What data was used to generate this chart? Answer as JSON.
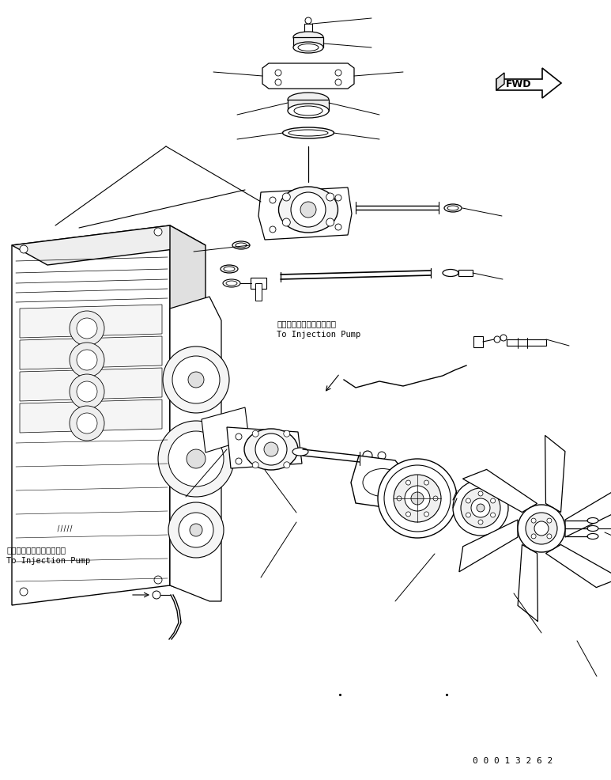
{
  "fig_width": 7.73,
  "fig_height": 9.86,
  "dpi": 100,
  "bg_color": "#ffffff",
  "line_color": "#000000",
  "line_width": 0.8,
  "part_number": "0 0 0 1 3 2 6 2",
  "fwd_label": "FWD",
  "label_injection_pump_jp": "インジェクションポンプへ",
  "label_injection_pump_en": "To Injection Pump"
}
